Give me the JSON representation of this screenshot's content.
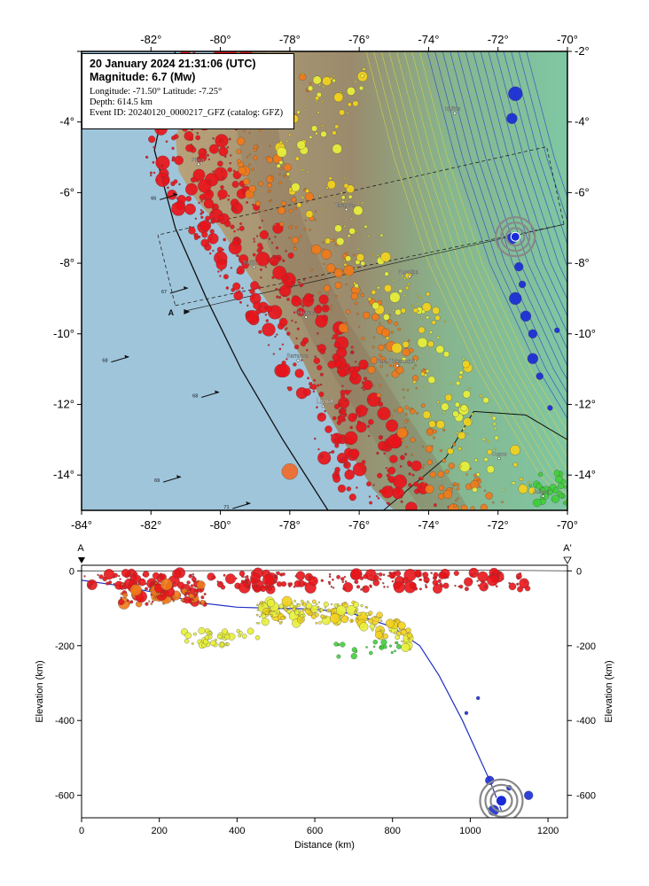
{
  "event": {
    "datetime": "20 January 2024 21:31:06 (UTC)",
    "magnitude": "Magnitude: 6.7 (Mw)",
    "location": "Longitude: -71.50°  Latitude: -7.25°",
    "depth": "Depth: 614.5 km",
    "event_id": "Event ID: 20240120_0000217_GFZ (catalog: GFZ)",
    "longitude": -71.5,
    "latitude": -7.25,
    "depth_km": 614.5
  },
  "map": {
    "lon_range": [
      -84,
      -70
    ],
    "lat_range": [
      -15,
      -2
    ],
    "lon_ticks": [
      "-84°",
      "-82°",
      "-80°",
      "-78°",
      "-76°",
      "-74°",
      "-72°",
      "-70°"
    ],
    "top_lon_ticks": [
      "-82°",
      "-80°",
      "-78°",
      "-76°",
      "-74°",
      "-72°",
      "-70°"
    ],
    "lat_ticks": [
      "-2°",
      "-4°",
      "-6°",
      "-8°",
      "-10°",
      "-12°",
      "-14°"
    ],
    "lat_tick_values": [
      -2,
      -4,
      -6,
      -8,
      -10,
      -12,
      -14
    ],
    "cities": [
      {
        "name": "Iquitos",
        "lon": -73.25,
        "lat": -3.75
      },
      {
        "name": "Piura",
        "lon": -80.63,
        "lat": -5.2
      },
      {
        "name": "Tarapoto",
        "lon": -76.37,
        "lat": -6.48
      },
      {
        "name": "Trujillo",
        "lon": -79.03,
        "lat": -8.11
      },
      {
        "name": "Pucallpa",
        "lon": -74.55,
        "lat": -8.38
      },
      {
        "name": "Huaraz",
        "lon": -77.53,
        "lat": -9.53
      },
      {
        "name": "Barranca",
        "lon": -77.76,
        "lat": -10.75
      },
      {
        "name": "Bajo Pichanaqui",
        "lon": -74.9,
        "lat": -10.9
      },
      {
        "name": "Lima",
        "lon": -77.04,
        "lat": -12.05
      },
      {
        "name": "Cusco",
        "lon": -71.97,
        "lat": -13.53
      },
      {
        "name": "Juliaca",
        "lon": -70.7,
        "lat": -14.6
      }
    ],
    "plate_arrows": [
      {
        "label": "66",
        "lon": -81.9,
        "lat": -6.1
      },
      {
        "label": "67",
        "lon": -81.6,
        "lat": -8.75
      },
      {
        "label": "68",
        "lon": -83.3,
        "lat": -10.7
      },
      {
        "label": "68",
        "lon": -80.7,
        "lat": -11.7
      },
      {
        "label": "69",
        "lon": -81.8,
        "lat": -14.1
      },
      {
        "label": "71",
        "lon": -79.8,
        "lat": -14.85
      }
    ],
    "profile_label_a": "A",
    "colors": {
      "shallow": "#e8141a",
      "intermediate_a": "#f07a1a",
      "intermediate_b": "#f3d21d",
      "intermediate_c": "#e8f03a",
      "deep_green": "#3fcf3a",
      "deep": "#1a2bd6",
      "ocean": "#9fc5db",
      "lowland": "#7fc7a3",
      "contour": "#2030c0"
    }
  },
  "section": {
    "label_a": "A",
    "label_a_prime": "A'",
    "xlabel": "Distance (km)",
    "ylabel": "Elevation (km)",
    "x_range": [
      0,
      1250
    ],
    "y_range": [
      -660,
      15
    ],
    "x_ticks": [
      "0",
      "200",
      "400",
      "600",
      "800",
      "1000",
      "1200"
    ],
    "x_tick_values": [
      0,
      200,
      400,
      600,
      800,
      1000,
      1200
    ],
    "y_ticks": [
      "0",
      "-200",
      "-400",
      "-600"
    ],
    "y_tick_values": [
      0,
      -200,
      -400,
      -600
    ],
    "slab_profile": [
      [
        0,
        -25
      ],
      [
        100,
        -40
      ],
      [
        200,
        -60
      ],
      [
        300,
        -85
      ],
      [
        400,
        -97
      ],
      [
        500,
        -100
      ],
      [
        600,
        -102
      ],
      [
        700,
        -115
      ],
      [
        800,
        -150
      ],
      [
        870,
        -200
      ],
      [
        920,
        -280
      ],
      [
        980,
        -400
      ],
      [
        1050,
        -560
      ],
      [
        1080,
        -640
      ]
    ],
    "hypocenter": {
      "distance": 1080,
      "depth": -614.5
    }
  }
}
